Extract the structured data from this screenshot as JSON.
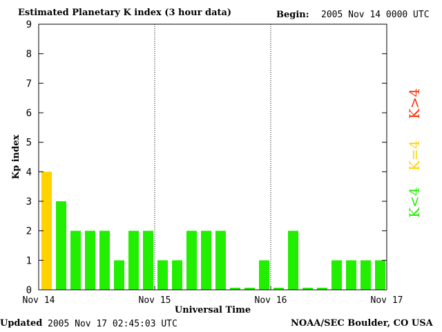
{
  "header": {
    "title": "Estimated Planetary K index (3 hour data)",
    "begin_label": "Begin:",
    "begin_value": "2005 Nov 14 0000 UTC"
  },
  "footer": {
    "updated_label": "Updated",
    "updated_value": "2005 Nov 17 02:45:03 UTC",
    "source": "NOAA/SEC Boulder, CO USA"
  },
  "legend": [
    {
      "label": "K>4",
      "color": "#ff2a00"
    },
    {
      "label": "K=4",
      "color": "#ffd200"
    },
    {
      "label": "K<4",
      "color": "#22ee00"
    }
  ],
  "chart_data": {
    "type": "bar",
    "title": "Estimated Planetary K index (3 hour data)",
    "xlabel": "Universal Time",
    "ylabel": "Kp index",
    "ylim": [
      0,
      9
    ],
    "yticks": [
      "0",
      "1",
      "2",
      "3",
      "4",
      "5",
      "6",
      "7",
      "8",
      "9"
    ],
    "xticks": [
      "Nov 14",
      "Nov 15",
      "Nov 16",
      "Nov 17"
    ],
    "values": [
      4,
      3,
      2,
      2,
      2,
      1,
      2,
      2,
      1,
      1,
      2,
      2,
      2,
      0,
      0,
      1,
      0,
      2,
      0,
      0,
      1,
      1,
      1,
      1
    ],
    "colors": {
      "low": "#22ee00",
      "equal": "#ffd200",
      "high": "#ff2a00"
    },
    "grid": "dotted day separators"
  }
}
